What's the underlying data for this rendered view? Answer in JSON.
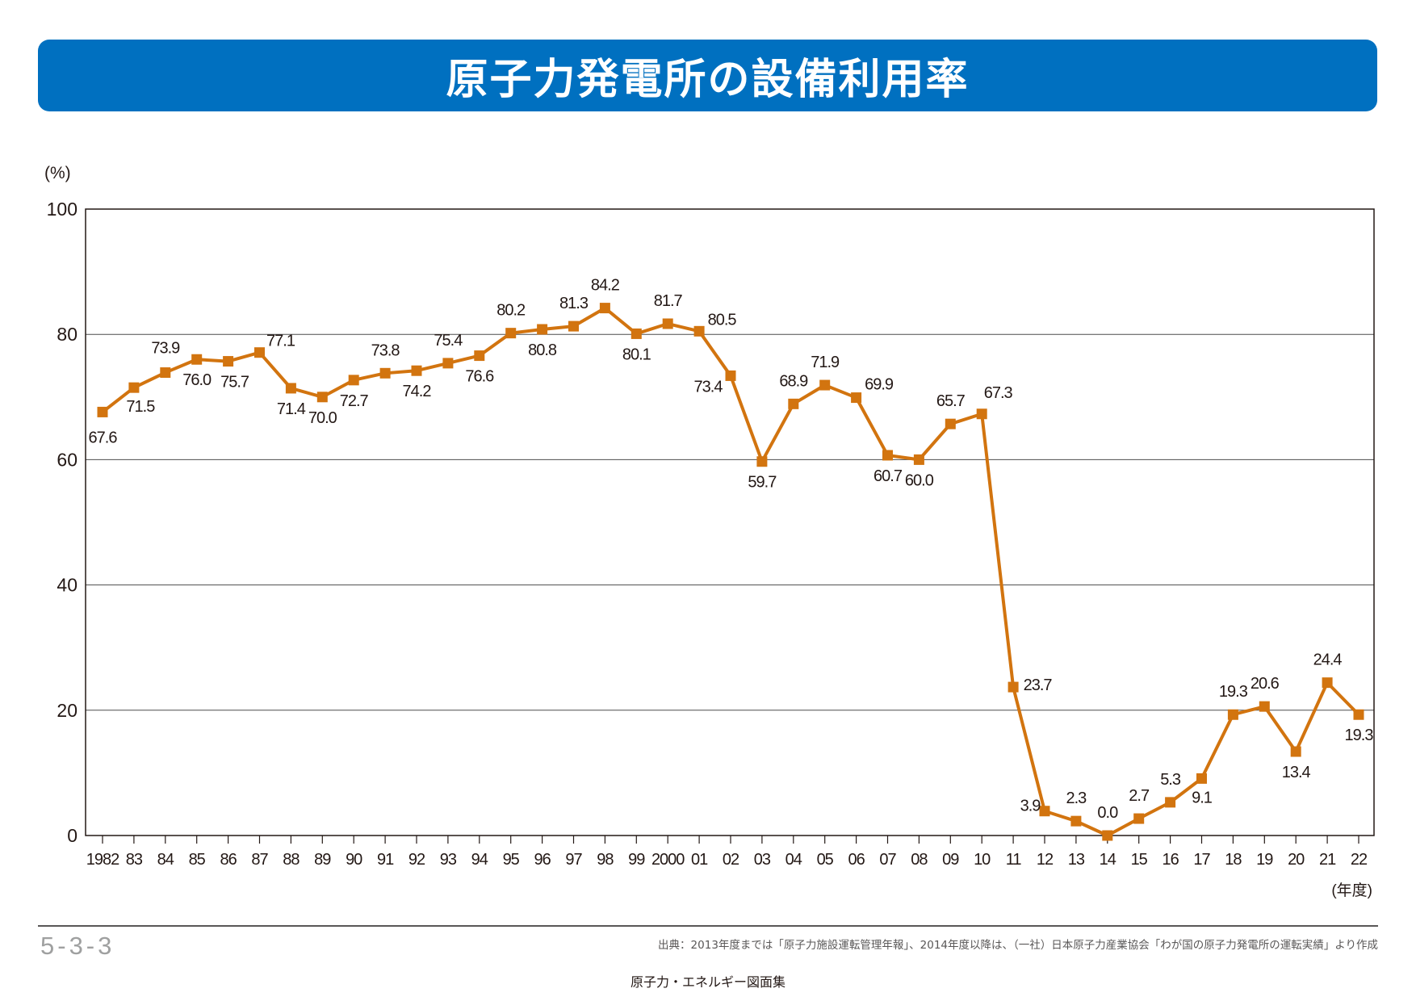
{
  "header": {
    "title": "原子力発電所の設備利用率"
  },
  "footer": {
    "figure_number": "5-3-3",
    "source": "出典：2013年度までは「原子力施設運転管理年報」、2014年度以降は、（一社）日本原子力産業協会「わが国の原子力発電所の運転実績」より作成",
    "publication": "原子力・エネルギー図面集"
  },
  "chart_data": {
    "type": "line",
    "title": "原子力発電所の設備利用率",
    "ylabel": "(%)",
    "xlabel": "(年度)",
    "ylim": [
      0,
      100
    ],
    "yticks": [
      0,
      20,
      40,
      60,
      80,
      100
    ],
    "grid": true,
    "categories": [
      "1982",
      "83",
      "84",
      "85",
      "86",
      "87",
      "88",
      "89",
      "90",
      "91",
      "92",
      "93",
      "94",
      "95",
      "96",
      "97",
      "98",
      "99",
      "2000",
      "01",
      "02",
      "03",
      "04",
      "05",
      "06",
      "07",
      "08",
      "09",
      "10",
      "11",
      "12",
      "13",
      "14",
      "15",
      "16",
      "17",
      "18",
      "19",
      "20",
      "21",
      "22"
    ],
    "series": [
      {
        "color": "#d2740f",
        "values": [
          67.6,
          71.5,
          73.9,
          76.0,
          75.7,
          77.1,
          71.4,
          70.0,
          72.7,
          73.8,
          74.2,
          75.4,
          76.6,
          80.2,
          80.8,
          81.3,
          84.2,
          80.1,
          81.7,
          80.5,
          73.4,
          59.7,
          68.9,
          71.9,
          69.9,
          60.7,
          60.0,
          65.7,
          67.3,
          23.7,
          3.9,
          2.3,
          0.0,
          2.7,
          5.3,
          9.1,
          19.3,
          20.6,
          13.4,
          24.4,
          19.3
        ],
        "data_labels": [
          "67.6",
          "71.5",
          "73.9",
          "76.0",
          "75.7",
          "77.1",
          "71.4",
          "70.0",
          "72.7",
          "73.8",
          "74.2",
          "75.4",
          "76.6",
          "80.2",
          "80.8",
          "81.3",
          "84.2",
          "80.1",
          "81.7",
          "80.5",
          "73.4",
          "59.7",
          "68.9",
          "71.9",
          "69.9",
          "60.7",
          "60.0",
          "65.7",
          "67.3",
          "23.7",
          "3.9",
          "2.3",
          "0.0",
          "2.7",
          "5.3",
          "9.1",
          "19.3",
          "20.6",
          "13.4",
          "24.4",
          "19.3"
        ]
      }
    ]
  }
}
